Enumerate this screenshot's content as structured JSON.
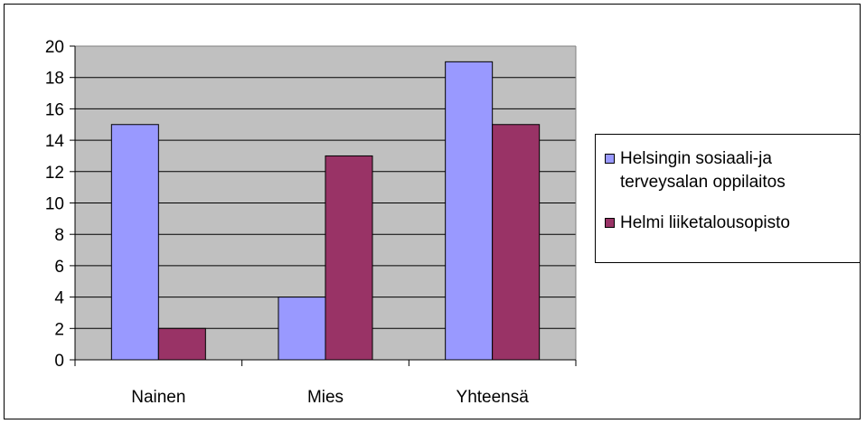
{
  "chart_data": {
    "type": "bar",
    "categories": [
      "Nainen",
      "Mies",
      "Yhteensä"
    ],
    "series": [
      {
        "name": "Helsingin sosiaali-ja terveysalan oppilaitos",
        "values": [
          15,
          4,
          19
        ],
        "color": "#9999ff"
      },
      {
        "name": "Helmi liiketalousopisto",
        "values": [
          2,
          13,
          15
        ],
        "color": "#993366"
      }
    ],
    "title": "",
    "xlabel": "",
    "ylabel": "",
    "ylim": [
      0,
      20
    ],
    "yticks": [
      0,
      2,
      4,
      6,
      8,
      10,
      12,
      14,
      16,
      18,
      20
    ],
    "grid": true,
    "plot_background": "#c0c0c0",
    "legend_position": "right"
  },
  "legend": {
    "item1_line1": "Helsingin sosiaali-ja",
    "item1_line2": "terveysalan oppilaitos",
    "item2": "Helmi liiketalousopisto"
  }
}
